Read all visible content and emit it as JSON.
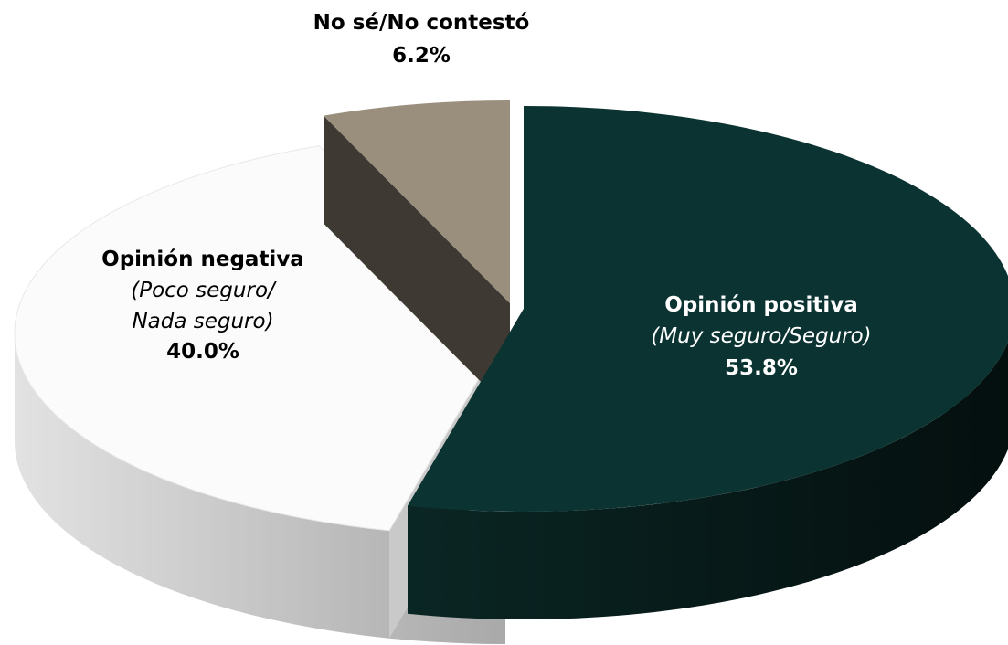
{
  "chart_data": {
    "type": "pie",
    "three_d": true,
    "slices": [
      {
        "name": "Opinión positiva",
        "detail": "(Muy seguro/Seguro)",
        "value": 53.8,
        "label": "53.8%",
        "color": "#0b3331",
        "side_color": "#061d1c",
        "text_color": "#ffffff",
        "exploded": true
      },
      {
        "name": "Opinión negativa",
        "detail_lines": [
          "(Poco seguro/",
          "Nada seguro)"
        ],
        "value": 40.0,
        "label": "40.0%",
        "color": "#fbfbfc",
        "side_color": "#d4d4d4",
        "text_color": "#000000",
        "exploded": false
      },
      {
        "name": "No sé/No contestó",
        "value": 6.2,
        "label": "6.2%",
        "color": "#9a8f7c",
        "side_color": "#3e3a33",
        "text_color": "#000000",
        "exploded": true
      }
    ]
  }
}
